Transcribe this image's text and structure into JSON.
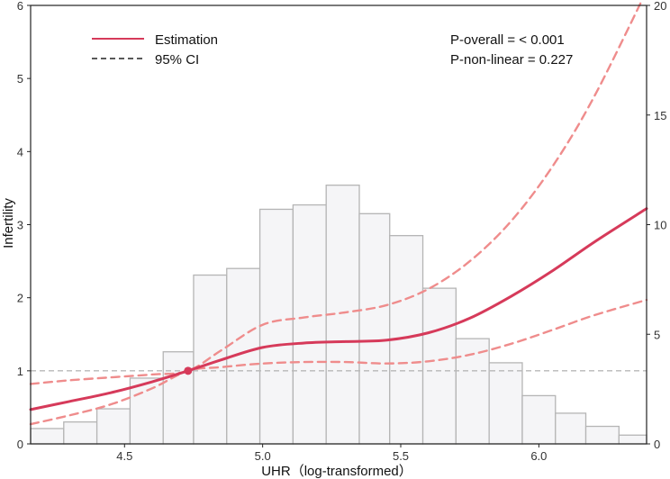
{
  "chart_data": {
    "type": "line",
    "title": "",
    "xlabel": "UHR（log-transformed）",
    "ylabel": "Infertility",
    "xlim": [
      4.16,
      6.39
    ],
    "ylim": [
      0,
      6
    ],
    "y2lim": [
      0,
      20
    ],
    "x_ticks": [
      4.5,
      5.0,
      5.5,
      6.0
    ],
    "x_tick_labels": [
      "4.5",
      "5.0",
      "5.5",
      "6.0"
    ],
    "y_ticks": [
      0,
      1,
      2,
      3,
      4,
      5,
      6
    ],
    "y_tick_labels": [
      "0",
      "1",
      "2",
      "3",
      "4",
      "5",
      "6"
    ],
    "y2_ticks": [
      0,
      5,
      10,
      15,
      20
    ],
    "y2_tick_labels": [
      "0",
      "5",
      "10",
      "15",
      "20"
    ],
    "reference_line_y": 1,
    "reference_point": {
      "x": 4.73,
      "y": 1.0
    },
    "legend": {
      "position": "top-left",
      "entries": [
        {
          "label": "Estimation",
          "style": "solid",
          "color": "#d63a5a"
        },
        {
          "label": "95% CI",
          "style": "dashed",
          "color": "#222222"
        }
      ]
    },
    "annotations": [
      "P-overall = < 0.001",
      "P-non-linear = 0.227"
    ],
    "histogram": {
      "axis": "secondary",
      "bin_edges": [
        4.16,
        4.28,
        4.4,
        4.52,
        4.64,
        4.75,
        4.87,
        4.99,
        5.11,
        5.23,
        5.35,
        5.46,
        5.58,
        5.7,
        5.82,
        5.94,
        6.06,
        6.17,
        6.29,
        6.39
      ],
      "counts": [
        0.7,
        1.0,
        1.6,
        3.0,
        4.2,
        7.7,
        8.0,
        10.7,
        10.9,
        11.8,
        10.5,
        9.5,
        7.1,
        4.8,
        3.7,
        2.2,
        1.4,
        0.8,
        0.4
      ],
      "fill": "#f5f5f7",
      "stroke": "#b5b5b5"
    },
    "series": [
      {
        "name": "Estimation",
        "style": "solid",
        "color": "#d63a5a",
        "x": [
          4.16,
          4.3,
          4.45,
          4.6,
          4.73,
          4.85,
          5.0,
          5.15,
          5.3,
          5.45,
          5.6,
          5.75,
          5.9,
          6.05,
          6.2,
          6.39
        ],
        "y": [
          0.47,
          0.58,
          0.7,
          0.85,
          1.0,
          1.15,
          1.32,
          1.38,
          1.4,
          1.42,
          1.52,
          1.72,
          2.02,
          2.37,
          2.76,
          3.22
        ]
      },
      {
        "name": "95% CI upper",
        "style": "dashed",
        "color": "#ef8c8c",
        "x": [
          4.16,
          4.3,
          4.45,
          4.6,
          4.73,
          4.85,
          5.0,
          5.15,
          5.3,
          5.45,
          5.6,
          5.75,
          5.9,
          6.05,
          6.2,
          6.39
        ],
        "y": [
          0.82,
          0.87,
          0.91,
          0.95,
          1.0,
          1.28,
          1.63,
          1.73,
          1.8,
          1.9,
          2.12,
          2.5,
          3.05,
          3.8,
          4.75,
          6.2
        ]
      },
      {
        "name": "95% CI lower",
        "style": "dashed",
        "color": "#ef8c8c",
        "x": [
          4.16,
          4.3,
          4.45,
          4.6,
          4.73,
          4.85,
          5.0,
          5.15,
          5.3,
          5.45,
          5.6,
          5.75,
          5.9,
          6.05,
          6.2,
          6.39
        ],
        "y": [
          0.27,
          0.39,
          0.54,
          0.76,
          1.0,
          1.05,
          1.1,
          1.12,
          1.12,
          1.1,
          1.13,
          1.22,
          1.37,
          1.56,
          1.76,
          1.97
        ]
      }
    ]
  }
}
